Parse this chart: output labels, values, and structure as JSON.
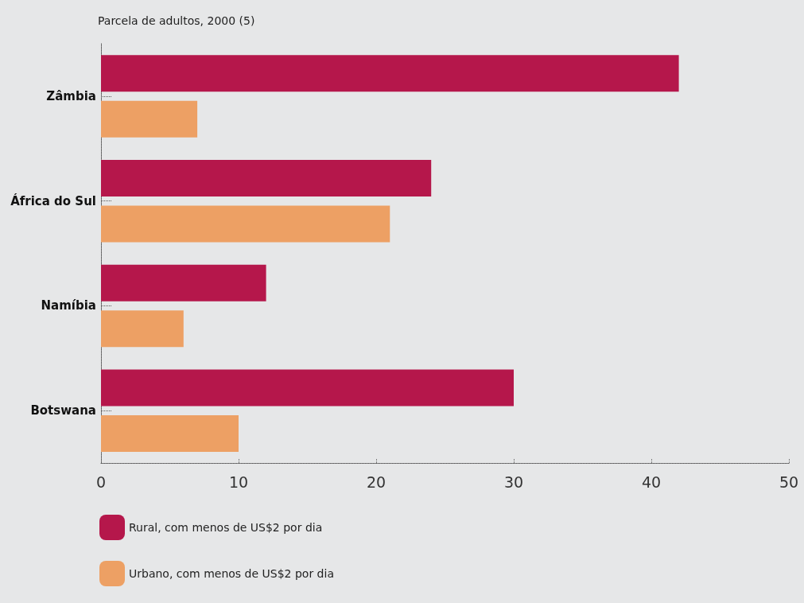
{
  "chart_data": {
    "type": "bar",
    "orientation": "horizontal",
    "title": "Parcela de adultos, 2000 (5)",
    "categories": [
      "Zâmbia",
      "África do Sul",
      "Namíbia",
      "Botswana"
    ],
    "series": [
      {
        "name": "Rural, com menos de US$2 por dia",
        "color": "#b5174b",
        "values": [
          42,
          24,
          12,
          30
        ]
      },
      {
        "name": "Urbano, com menos de US$2 por dia",
        "color": "#eda064",
        "values": [
          7,
          21,
          6,
          10
        ]
      }
    ],
    "xlim": [
      0,
      50
    ],
    "xticks": [
      0,
      10,
      20,
      30,
      40,
      50
    ],
    "grid": false,
    "legend": "bottom left"
  }
}
